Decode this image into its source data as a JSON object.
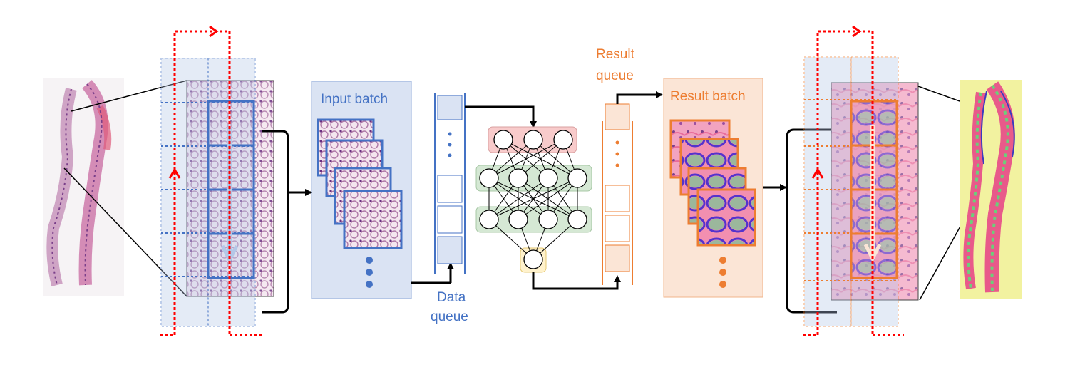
{
  "labels": {
    "input_batch": "Input batch",
    "data_queue_line1": "Data",
    "data_queue_line2": "queue",
    "result_queue_line1": "Result",
    "result_queue_line2": "queue",
    "result_batch": "Result batch"
  },
  "colors": {
    "blue": "#4472c4",
    "orange": "#ed7d31",
    "red": "#ff0000",
    "input_fill": "#dae3f3",
    "result_fill": "#fbe5d6",
    "nn_red_fill": "#f8cbcb",
    "nn_green_fill": "#d5e8d4",
    "nn_yellow_fill": "#fff2cc",
    "tissue_pink": "#e0a8c8",
    "tissue_purple": "#7a3f8a",
    "mask_yellow": "#f2f2a0",
    "mask_green": "#6ccf7a",
    "mask_blue": "#3b3bbf"
  }
}
